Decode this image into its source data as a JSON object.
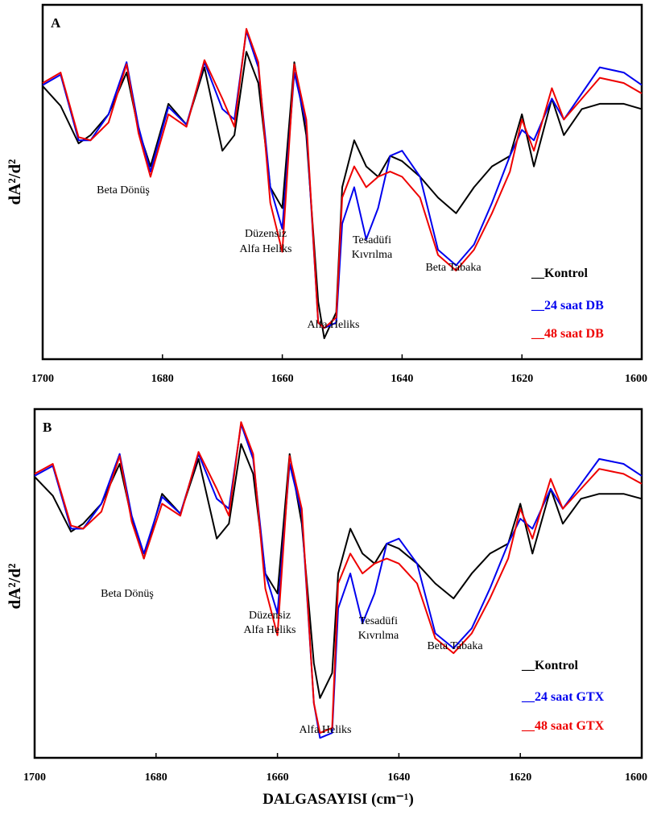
{
  "chart_data": [
    {
      "type": "line",
      "panel": "A",
      "ylabel": "dA²/d²",
      "xlim": [
        1700,
        1600
      ],
      "x_ticks": [
        "1700",
        "1680",
        "1660",
        "1640",
        "1620",
        "1600"
      ],
      "grid": false,
      "legend_position": "bottom-right",
      "x": [
        1700,
        1697,
        1694,
        1692,
        1689,
        1686,
        1684,
        1682,
        1679,
        1676,
        1673,
        1670,
        1668,
        1666,
        1664,
        1662,
        1660,
        1658,
        1656,
        1654,
        1653,
        1651,
        1650,
        1648,
        1646,
        1644,
        1642,
        1640,
        1637,
        1634,
        1631,
        1628,
        1625,
        1622,
        1620,
        1618,
        1615,
        1613,
        1610,
        1607,
        1603,
        1600
      ],
      "series": [
        {
          "name": "Kontrol",
          "color": "#000000",
          "values": [
            0.67,
            0.48,
            0.12,
            0.2,
            0.4,
            0.8,
            0.25,
            -0.1,
            0.5,
            0.3,
            0.85,
            0.05,
            0.2,
            1.0,
            0.7,
            -0.3,
            -0.5,
            0.9,
            0.2,
            -1.4,
            -1.75,
            -1.5,
            -0.3,
            0.15,
            -0.1,
            -0.2,
            0.0,
            -0.05,
            -0.2,
            -0.4,
            -0.55,
            -0.3,
            -0.1,
            0.0,
            0.4,
            -0.1,
            0.55,
            0.2,
            0.45,
            0.5,
            0.5,
            0.45
          ]
        },
        {
          "name": "24 saat DB",
          "color": "#0000ee",
          "values": [
            0.68,
            0.78,
            0.15,
            0.15,
            0.4,
            0.9,
            0.28,
            -0.15,
            0.47,
            0.3,
            0.9,
            0.45,
            0.35,
            1.2,
            0.85,
            -0.3,
            -0.7,
            0.8,
            0.3,
            -1.6,
            -1.65,
            -1.6,
            -0.65,
            -0.3,
            -0.8,
            -0.5,
            0.0,
            0.05,
            -0.2,
            -0.9,
            -1.05,
            -0.85,
            -0.45,
            0.0,
            0.25,
            0.15,
            0.55,
            0.35,
            0.6,
            0.85,
            0.8,
            0.68
          ]
        },
        {
          "name": "48 saat DB",
          "color": "#ee0000",
          "values": [
            0.7,
            0.8,
            0.18,
            0.15,
            0.32,
            0.88,
            0.22,
            -0.2,
            0.4,
            0.28,
            0.92,
            0.55,
            0.28,
            1.22,
            0.9,
            -0.45,
            -0.92,
            0.88,
            0.35,
            -1.6,
            -1.65,
            -1.55,
            -0.4,
            -0.1,
            -0.3,
            -0.2,
            -0.15,
            -0.2,
            -0.4,
            -0.95,
            -1.1,
            -0.9,
            -0.55,
            -0.15,
            0.35,
            0.05,
            0.65,
            0.35,
            0.55,
            0.75,
            0.7,
            0.6
          ]
        }
      ],
      "annotations": [
        {
          "text": "Beta Dönüş",
          "x": 1682
        },
        {
          "text": "Düzensiz",
          "x": 1660
        },
        {
          "text": "Alfa  Heliks",
          "x": 1660
        },
        {
          "text": "Tesadüfi",
          "x": 1645
        },
        {
          "text": "Kıvrılma",
          "x": 1645
        },
        {
          "text": "Beta Tabaka",
          "x": 1633
        },
        {
          "text": "Alfa  Heliks",
          "x": 1652
        }
      ],
      "legend": [
        {
          "label": "__Kontrol",
          "color": "#000000"
        },
        {
          "label": "__24 saat DB",
          "color": "#0000ee"
        },
        {
          "label": "__48 saat DB",
          "color": "#ee0000"
        }
      ]
    },
    {
      "type": "line",
      "panel": "B",
      "ylabel": "dA²/d²",
      "xlabel": "DALGASAYISI  (cm⁻¹)",
      "xlim": [
        1700,
        1600
      ],
      "x_ticks": [
        "1700",
        "1680",
        "1660",
        "1640",
        "1620",
        "1600"
      ],
      "grid": false,
      "legend_position": "bottom-right",
      "x": [
        1700,
        1697,
        1694,
        1692,
        1689,
        1686,
        1684,
        1682,
        1679,
        1676,
        1673,
        1670,
        1668,
        1666,
        1664,
        1662,
        1660,
        1658,
        1656,
        1654,
        1653,
        1651,
        1650,
        1648,
        1646,
        1644,
        1642,
        1640,
        1637,
        1634,
        1631,
        1628,
        1625,
        1622,
        1620,
        1618,
        1615,
        1613,
        1610,
        1607,
        1603,
        1600
      ],
      "series": [
        {
          "name": "Kontrol",
          "color": "#000000",
          "values": [
            0.67,
            0.48,
            0.12,
            0.2,
            0.4,
            0.8,
            0.25,
            -0.15,
            0.5,
            0.3,
            0.85,
            0.05,
            0.2,
            1.0,
            0.7,
            -0.3,
            -0.5,
            0.9,
            0.2,
            -1.2,
            -1.55,
            -1.3,
            -0.3,
            0.15,
            -0.1,
            -0.2,
            0.0,
            -0.05,
            -0.2,
            -0.4,
            -0.55,
            -0.3,
            -0.1,
            0.0,
            0.4,
            -0.1,
            0.55,
            0.2,
            0.45,
            0.5,
            0.5,
            0.45
          ]
        },
        {
          "name": "24 saat GTX",
          "color": "#0000ee",
          "values": [
            0.68,
            0.78,
            0.15,
            0.15,
            0.4,
            0.9,
            0.28,
            -0.1,
            0.47,
            0.3,
            0.9,
            0.45,
            0.35,
            1.2,
            0.85,
            -0.3,
            -0.7,
            0.8,
            0.3,
            -1.6,
            -1.95,
            -1.9,
            -0.65,
            -0.3,
            -0.8,
            -0.5,
            0.0,
            0.05,
            -0.2,
            -0.9,
            -1.05,
            -0.85,
            -0.45,
            0.0,
            0.25,
            0.15,
            0.55,
            0.35,
            0.6,
            0.85,
            0.8,
            0.68
          ]
        },
        {
          "name": "48 saat GTX",
          "color": "#ee0000",
          "values": [
            0.7,
            0.8,
            0.18,
            0.15,
            0.32,
            0.88,
            0.22,
            -0.15,
            0.4,
            0.28,
            0.92,
            0.55,
            0.28,
            1.22,
            0.9,
            -0.45,
            -0.92,
            0.88,
            0.35,
            -1.6,
            -1.9,
            -1.85,
            -0.4,
            -0.1,
            -0.3,
            -0.2,
            -0.15,
            -0.2,
            -0.4,
            -0.95,
            -1.1,
            -0.9,
            -0.55,
            -0.15,
            0.35,
            0.05,
            0.65,
            0.35,
            0.55,
            0.75,
            0.7,
            0.6
          ]
        }
      ],
      "annotations": [
        {
          "text": "Beta Dönüş",
          "x": 1682
        },
        {
          "text": "Düzensiz",
          "x": 1660
        },
        {
          "text": "Alfa  Heliks",
          "x": 1660
        },
        {
          "text": "Tesadüfi",
          "x": 1645
        },
        {
          "text": "Kıvrılma",
          "x": 1645
        },
        {
          "text": "Beta Tabaka",
          "x": 1633
        },
        {
          "text": "Alfa  Heliks",
          "x": 1652
        }
      ],
      "legend": [
        {
          "label": "__Kontrol",
          "color": "#000000"
        },
        {
          "label": "__24 saat GTX",
          "color": "#0000ee"
        },
        {
          "label": "__48 saat GTX",
          "color": "#ee0000"
        }
      ]
    }
  ]
}
